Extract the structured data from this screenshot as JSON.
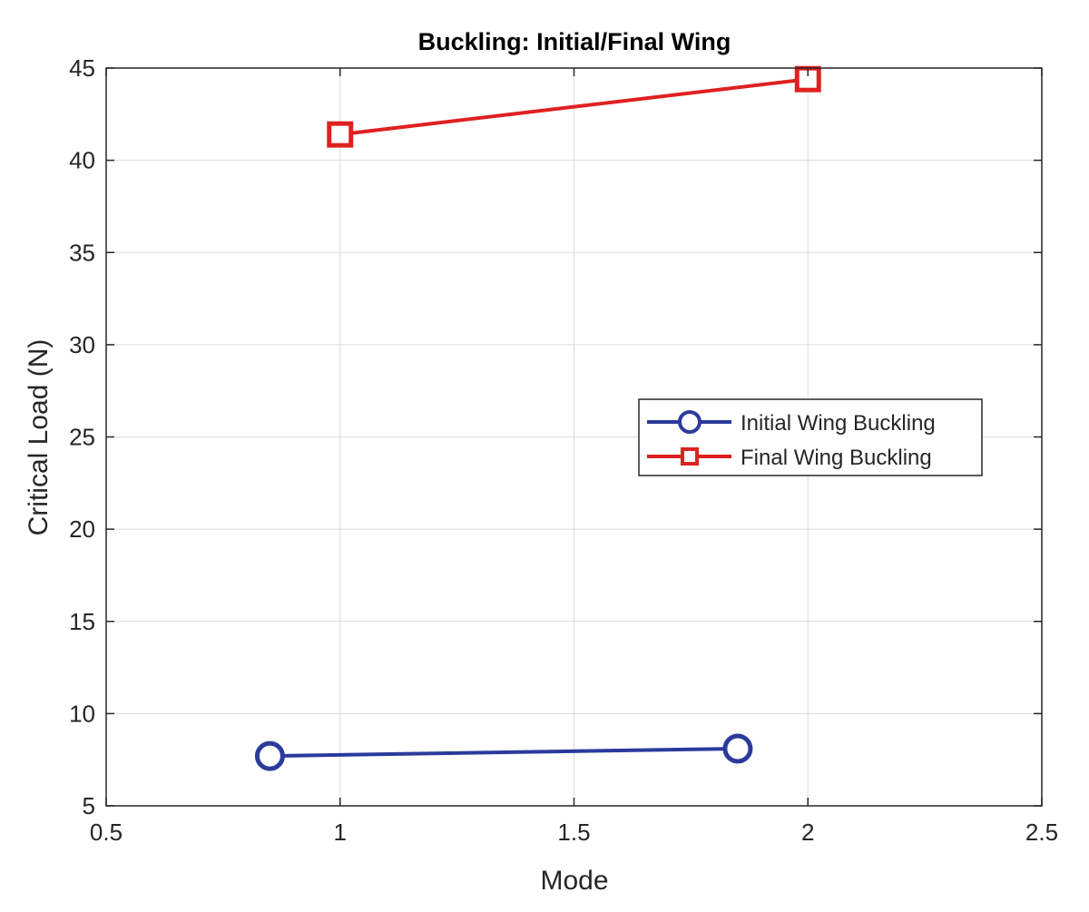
{
  "chart_data": {
    "type": "line",
    "title": "Buckling: Initial/Final Wing",
    "xlabel": "Mode",
    "ylabel": "Critical Load (N)",
    "xlim": [
      0.5,
      2.5
    ],
    "ylim": [
      5,
      45
    ],
    "xticks": [
      0.5,
      1,
      1.5,
      2,
      2.5
    ],
    "yticks": [
      5,
      10,
      15,
      20,
      25,
      30,
      35,
      40,
      45
    ],
    "grid": true,
    "legend_position": "right",
    "series": [
      {
        "name": "Initial Wing Buckling",
        "color": "#2b3a9c",
        "marker": "circle",
        "x": [
          0.85,
          1.85
        ],
        "y": [
          7.7,
          8.1
        ]
      },
      {
        "name": "Final Wing Buckling",
        "color": "#e02020",
        "marker": "square",
        "x": [
          1.0,
          2.0
        ],
        "y": [
          41.4,
          44.4
        ]
      }
    ]
  }
}
